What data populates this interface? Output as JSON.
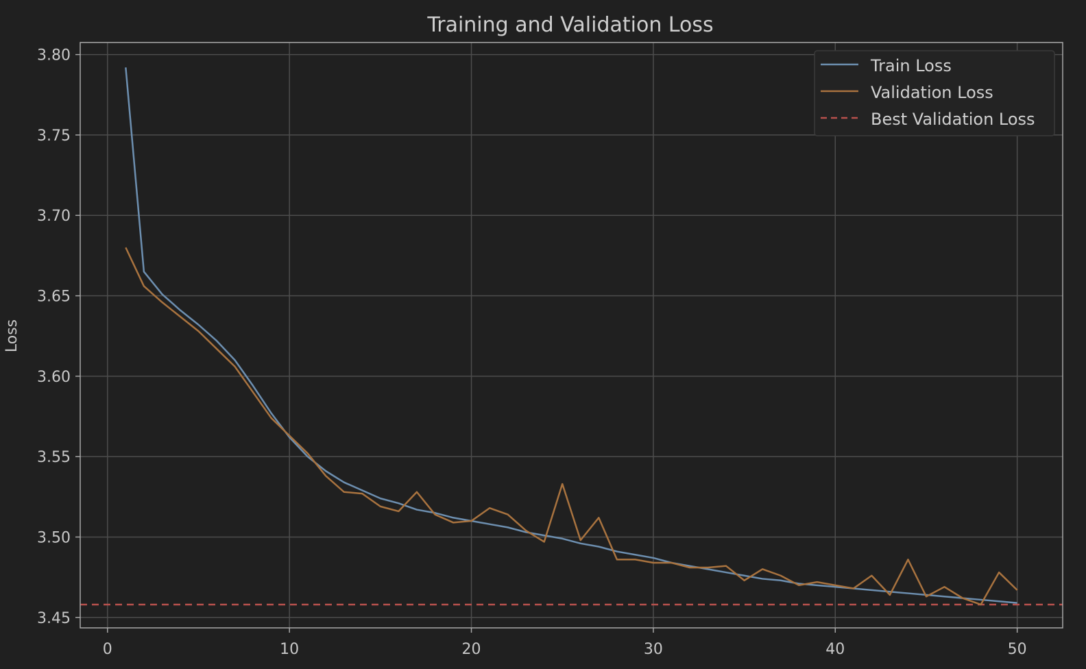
{
  "chart_data": {
    "type": "line",
    "title": "Training and Validation Loss",
    "xlabel": "",
    "ylabel": "Loss",
    "xlim": [
      -1.5,
      52.5
    ],
    "ylim": [
      3.4435,
      3.8075
    ],
    "xticks": [
      0,
      10,
      20,
      30,
      40,
      50
    ],
    "xtick_labels": [
      "0",
      "10",
      "20",
      "30",
      "40",
      "50"
    ],
    "yticks": [
      3.45,
      3.5,
      3.55,
      3.6,
      3.65,
      3.7,
      3.75,
      3.8
    ],
    "ytick_labels": [
      "3.45",
      "3.50",
      "3.55",
      "3.60",
      "3.65",
      "3.70",
      "3.75",
      "3.80"
    ],
    "grid": true,
    "legend_position": "top-right",
    "colors": {
      "background": "#202020",
      "train": "#6d8fb0",
      "val": "#a9733f",
      "best": "#b8514d"
    },
    "x": [
      1,
      2,
      3,
      4,
      5,
      6,
      7,
      8,
      9,
      10,
      11,
      12,
      13,
      14,
      15,
      16,
      17,
      18,
      19,
      20,
      21,
      22,
      23,
      24,
      25,
      26,
      27,
      28,
      29,
      30,
      31,
      32,
      33,
      34,
      35,
      36,
      37,
      38,
      39,
      40,
      41,
      42,
      43,
      44,
      45,
      46,
      47,
      48,
      49,
      50
    ],
    "series": [
      {
        "name": "Train Loss",
        "style": "solid",
        "color": "#6d8fb0",
        "values": [
          3.792,
          3.665,
          3.651,
          3.641,
          3.632,
          3.622,
          3.61,
          3.594,
          3.577,
          3.562,
          3.55,
          3.541,
          3.534,
          3.529,
          3.524,
          3.521,
          3.517,
          3.515,
          3.512,
          3.51,
          3.508,
          3.506,
          3.503,
          3.501,
          3.499,
          3.496,
          3.494,
          3.491,
          3.489,
          3.487,
          3.484,
          3.482,
          3.48,
          3.478,
          3.476,
          3.474,
          3.473,
          3.471,
          3.47,
          3.469,
          3.468,
          3.467,
          3.466,
          3.465,
          3.464,
          3.463,
          3.462,
          3.461,
          3.46,
          3.459
        ]
      },
      {
        "name": "Validation Loss",
        "style": "solid",
        "color": "#a9733f",
        "values": [
          3.68,
          3.656,
          3.646,
          3.637,
          3.628,
          3.617,
          3.606,
          3.59,
          3.574,
          3.563,
          3.552,
          3.538,
          3.528,
          3.527,
          3.519,
          3.516,
          3.528,
          3.514,
          3.509,
          3.51,
          3.518,
          3.514,
          3.504,
          3.497,
          3.533,
          3.498,
          3.512,
          3.486,
          3.486,
          3.484,
          3.484,
          3.481,
          3.481,
          3.482,
          3.473,
          3.48,
          3.476,
          3.47,
          3.472,
          3.47,
          3.468,
          3.476,
          3.464,
          3.486,
          3.463,
          3.469,
          3.462,
          3.458,
          3.478,
          3.467
        ]
      },
      {
        "name": "Best Validation Loss",
        "style": "dashed",
        "color": "#b8514d",
        "value": 3.458
      }
    ]
  }
}
